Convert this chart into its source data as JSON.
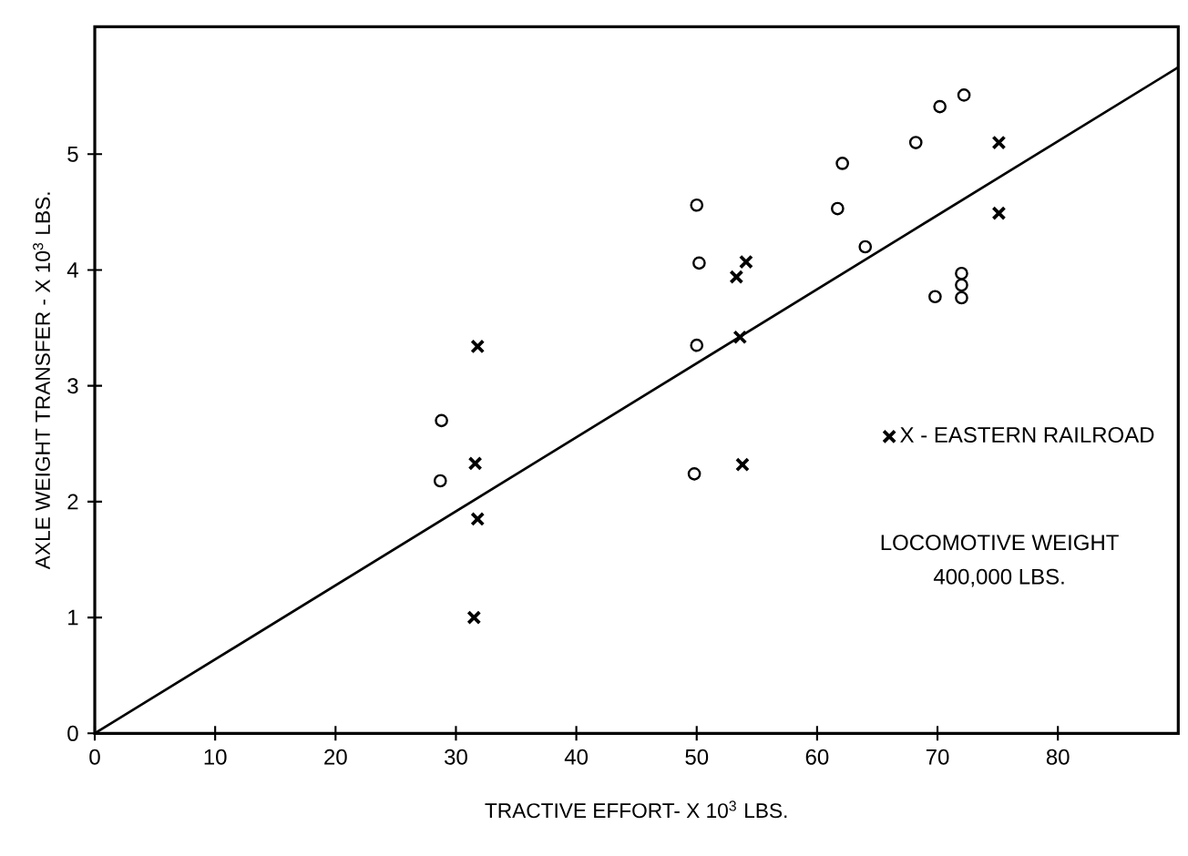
{
  "chart_data": {
    "type": "scatter",
    "xlabel": "TRACTIVE EFFORT- X 10$^{3}$ LBS.",
    "ylabel": "AXLE WEIGHT TRANSFER - X 10$^{3}$ LBS.",
    "xlim": [
      0,
      90
    ],
    "ylim": [
      0,
      6.1
    ],
    "xticks": [
      0,
      10,
      20,
      30,
      40,
      50,
      60,
      70,
      80
    ],
    "yticks": [
      0,
      1,
      2,
      3,
      4,
      5
    ],
    "grid": false,
    "legend": "right",
    "annotations": [
      "LOCOMOTIVE WEIGHT",
      "400,000 LBS."
    ],
    "series": [
      {
        "color": "#000000",
        "marker": "circle",
        "x": [
          28.8,
          28.7,
          50.0,
          50.2,
          50.0,
          49.8,
          62.1,
          61.7,
          64.0,
          68.2,
          70.2,
          72.2,
          69.8,
          72.0,
          72.0,
          72.0
        ],
        "values": [
          2.7,
          2.18,
          4.56,
          4.06,
          3.35,
          2.24,
          4.92,
          4.53,
          4.2,
          5.1,
          5.41,
          5.51,
          3.77,
          3.97,
          3.87,
          3.76
        ]
      },
      {
        "name": "X - EASTERN RAILROAD",
        "color": "#000000",
        "marker": "cross",
        "x": [
          31.8,
          31.6,
          31.8,
          31.5,
          53.3,
          54.1,
          53.6,
          53.8,
          75.1,
          75.1
        ],
        "values": [
          3.34,
          2.33,
          1.85,
          1.0,
          3.94,
          4.07,
          3.42,
          2.32,
          5.1,
          4.49
        ]
      },
      {
        "type": "line",
        "color": "#000000",
        "line_style": "solid",
        "x": [
          0,
          90
        ],
        "values": [
          0,
          5.75
        ]
      }
    ]
  }
}
